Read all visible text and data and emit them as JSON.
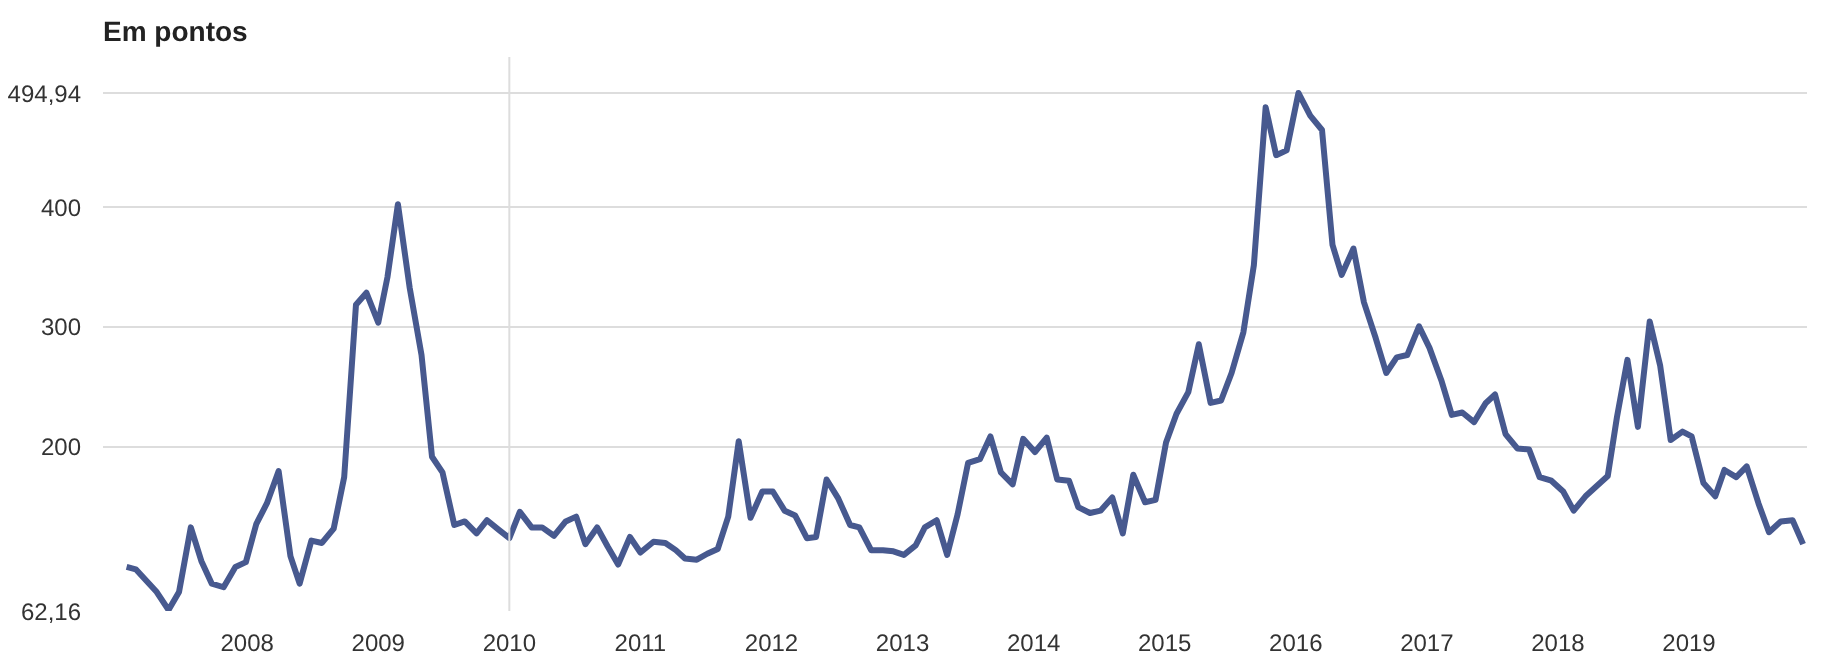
{
  "chart_data": {
    "type": "line",
    "title": "Em pontos",
    "x": [
      2007.08,
      2007.15,
      2007.31,
      2007.4,
      2007.48,
      2007.57,
      2007.65,
      2007.73,
      2007.82,
      2007.91,
      2007.99,
      2008.07,
      2008.15,
      2008.24,
      2008.33,
      2008.4,
      2008.49,
      2008.57,
      2008.66,
      2008.74,
      2008.83,
      2008.91,
      2009.0,
      2009.07,
      2009.15,
      2009.24,
      2009.33,
      2009.41,
      2009.49,
      2009.58,
      2009.66,
      2009.75,
      2009.83,
      2009.92,
      2010.0,
      2010.08,
      2010.17,
      2010.25,
      2010.34,
      2010.43,
      2010.51,
      2010.58,
      2010.67,
      2010.75,
      2010.83,
      2010.92,
      2011.0,
      2011.1,
      2011.19,
      2011.27,
      2011.34,
      2011.43,
      2011.51,
      2011.59,
      2011.67,
      2011.75,
      2011.84,
      2011.93,
      2012.01,
      2012.1,
      2012.18,
      2012.27,
      2012.34,
      2012.42,
      2012.51,
      2012.6,
      2012.67,
      2012.76,
      2012.85,
      2012.93,
      2013.01,
      2013.1,
      2013.17,
      2013.26,
      2013.34,
      2013.42,
      2013.5,
      2013.59,
      2013.67,
      2013.75,
      2013.84,
      2013.92,
      2014.01,
      2014.1,
      2014.18,
      2014.27,
      2014.34,
      2014.43,
      2014.51,
      2014.6,
      2014.68,
      2014.76,
      2014.85,
      2014.93,
      2015.01,
      2015.09,
      2015.18,
      2015.26,
      2015.35,
      2015.43,
      2015.51,
      2015.6,
      2015.68,
      2015.77,
      2015.85,
      2015.93,
      2016.02,
      2016.11,
      2016.2,
      2016.28,
      2016.35,
      2016.44,
      2016.52,
      2016.61,
      2016.69,
      2016.77,
      2016.85,
      2016.94,
      2017.02,
      2017.11,
      2017.19,
      2017.27,
      2017.36,
      2017.45,
      2017.52,
      2017.6,
      2017.69,
      2017.78,
      2017.86,
      2017.95,
      2018.04,
      2018.12,
      2018.21,
      2018.3,
      2018.38,
      2018.45,
      2018.53,
      2018.61,
      2018.7,
      2018.78,
      2018.86,
      2018.95,
      2019.02,
      2019.11,
      2019.2,
      2019.27,
      2019.36,
      2019.44,
      2019.53,
      2019.61,
      2019.7,
      2019.79,
      2019.87
    ],
    "series": [
      {
        "color": "#47598f",
        "values": [
          99,
          97,
          78,
          63,
          78,
          132,
          104,
          85,
          82,
          99,
          103,
          135,
          152,
          179,
          108,
          85,
          121,
          119,
          131,
          174,
          318,
          328,
          303,
          341,
          402,
          332,
          276,
          191,
          178,
          134,
          137,
          127,
          138,
          130,
          123,
          145,
          132,
          132,
          125,
          137,
          141,
          118,
          132,
          116,
          101,
          124,
          111,
          120,
          119,
          113,
          106,
          105,
          110,
          114,
          141,
          204,
          140,
          162,
          162,
          146,
          142,
          123,
          124,
          172,
          156,
          134,
          132,
          113,
          113,
          112,
          109,
          117,
          132,
          138,
          109,
          143,
          186,
          189,
          208,
          178,
          168,
          206,
          195,
          207,
          172,
          171,
          149,
          144,
          146,
          157,
          127,
          176,
          153,
          155,
          203,
          227,
          245,
          285,
          236,
          238,
          261,
          295,
          351,
          483,
          443,
          447,
          494.94,
          476,
          464,
          368,
          343,
          365,
          320,
          290,
          261,
          274,
          276,
          300,
          282,
          255,
          226,
          228,
          220,
          236,
          243,
          210,
          198,
          197,
          174,
          171,
          162,
          146,
          158,
          167,
          175,
          224,
          272,
          216,
          304,
          267,
          205,
          212,
          208,
          169,
          158,
          180,
          174,
          183,
          152,
          128,
          137,
          138,
          118
        ]
      }
    ],
    "xlim": [
      2006.9,
      2019.9
    ],
    "ylim": [
      62.16,
      525
    ],
    "xticks": [
      2008,
      2009,
      2010,
      2011,
      2012,
      2013,
      2014,
      2015,
      2016,
      2017,
      2018,
      2019
    ],
    "yticks": [
      {
        "value": 62.16,
        "label": "62,16"
      },
      200,
      300,
      400,
      {
        "value": 494.94,
        "label": "494,94"
      }
    ],
    "grid": "y",
    "line_style": "solid",
    "marker": "none",
    "ref_lines": [
      {
        "axis": "x",
        "value": 2010,
        "color": "#dddddd"
      }
    ]
  }
}
